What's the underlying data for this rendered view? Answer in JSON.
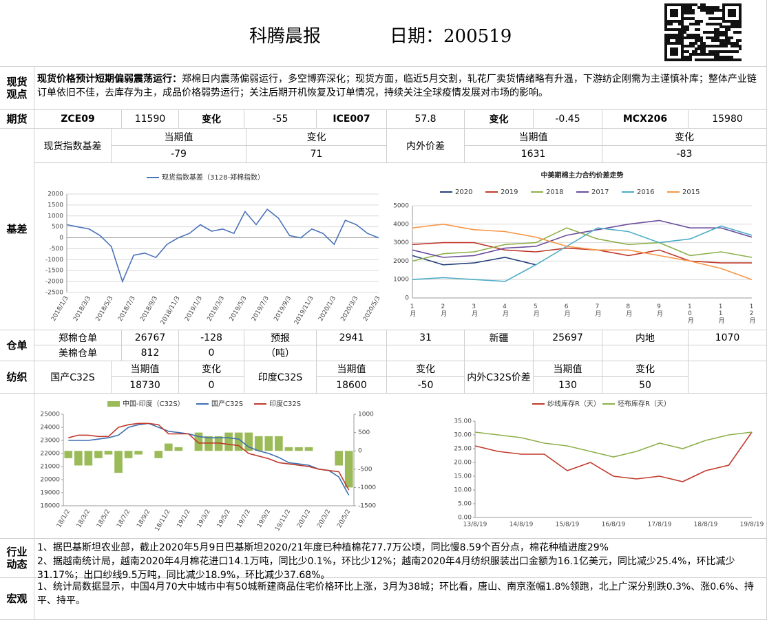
{
  "header": {
    "title": "科腾晨报",
    "date": "日期：200519"
  },
  "spot": {
    "label": "现货观点",
    "headline": "现货价格预计短期偏弱震荡运行：",
    "text": "郑棉日内震荡偏弱运行，多空博弈深化；现货方面，临近5月交割，轧花厂卖货情绪略有升温，下游纺企刚需为主谨慎补库；整体产业链订单依旧不佳，去库存为主，成品价格弱势运行；关注后期开机恢复及订单情况，持续关注全球疫情发展对市场的影响。"
  },
  "futures": {
    "label": "期货",
    "cells": [
      "ZCE09",
      "11590",
      "变化",
      "-55",
      "ICE007",
      "57.8",
      "变化",
      "-0.45",
      "MCX206",
      "15980"
    ]
  },
  "basis": {
    "label": "基差",
    "name": "现货指数基差",
    "current_label": "当期值",
    "current": "-79",
    "change_label": "变化",
    "change": "71",
    "spread_name": "内外价差",
    "spread_current_label": "当期值",
    "spread_current": "1631",
    "spread_change_label": "变化",
    "spread_change": "-83"
  },
  "warehouse": {
    "label": "仓单",
    "rows": [
      [
        "郑棉仓单",
        "26767",
        "-128",
        "预报",
        "2941",
        "31",
        "新疆",
        "25697",
        "内地",
        "1070"
      ],
      [
        "美棉仓单",
        "812",
        "0",
        "（吨）"
      ]
    ]
  },
  "textile": {
    "label": "纺织",
    "groups": [
      {
        "name": "国产C32S",
        "current_label": "当期值",
        "current": "18730",
        "change_label": "变化",
        "change": "0"
      },
      {
        "name": "印度C32S",
        "current_label": "当期值",
        "current": "18600",
        "change_label": "变化",
        "change": "-50"
      },
      {
        "name": "内外C32S价差",
        "current_label": "当期值",
        "current": "130",
        "change_label": "变化",
        "change": "50"
      }
    ]
  },
  "industry": {
    "label": "行业动态",
    "lines": [
      "1、据巴基斯坦农业部，截止2020年5月9日巴基斯坦2020/21年度已种植棉花77.7万公顷，同比慢8.59个百分点，棉花种植进度29%",
      "2、据越南统计局，越南2020年4月棉花进口14.1万吨，同比少0.1%，环比少12%；越南2020年4月纺织服装出口金额为16.1亿美元，同比减少25.4%，环比减少31.17%；出口纱线9.5万吨，同比减少18.9%，环比减少37.68%。"
    ]
  },
  "macro": {
    "label": "宏观",
    "lines": [
      "1、统计局数据显示，中国4月70大中城市中有50城新建商品住宅价格环比上涨，3月为38城；环比看，唐山、南京涨幅1.8%领跑，北上广深分别跌0.3%、涨0.6%、持平、持平。"
    ]
  },
  "chart_data": [
    {
      "type": "line",
      "grid": true,
      "categories": [
        "2018/1/3",
        null,
        "2018/3/3",
        null,
        "2018/5/3",
        null,
        "2018/7/3",
        null,
        "2018/9/3",
        null,
        "2018/11/3",
        null,
        "2019/1/3",
        null,
        "2019/3/3",
        null,
        "2019/5/3",
        null,
        "2019/7/3",
        null,
        "2019/9/3",
        null,
        "2019/11/3",
        null,
        "2020/1/3",
        null,
        "2020/3/3",
        null,
        "2020/5/3"
      ],
      "series": [
        {
          "name": "现货指数基差（3128-郑棉指数）",
          "color": "#4a72b8",
          "values": [
            600,
            500,
            400,
            100,
            -400,
            -2000,
            -800,
            -700,
            -900,
            -300,
            0,
            200,
            600,
            300,
            400,
            200,
            1200,
            600,
            1300,
            900,
            100,
            0,
            400,
            200,
            -300,
            800,
            600,
            200,
            0
          ]
        }
      ],
      "ylim": [
        -2500,
        2000
      ],
      "yticks": [
        -2500,
        -2000,
        -1500,
        -1000,
        -500,
        0,
        500,
        1000,
        1500,
        2000
      ]
    },
    {
      "type": "line",
      "grid": true,
      "title": "中美期棉主力合约价差走势",
      "categories": [
        "1月",
        "2月",
        "3月",
        "4月",
        "5月",
        "6月",
        "7月",
        "8月",
        "9月",
        "10月",
        "11月",
        "12月"
      ],
      "series": [
        {
          "name": "2020",
          "color": "#24407a",
          "values": [
            2300,
            1800,
            1900,
            2200,
            1800,
            null,
            null,
            null,
            null,
            null,
            null,
            null
          ]
        },
        {
          "name": "2019",
          "color": "#c0392b",
          "values": [
            2900,
            3000,
            3000,
            2600,
            2500,
            2700,
            2600,
            2300,
            2600,
            2000,
            1900,
            1900
          ]
        },
        {
          "name": "2018",
          "color": "#8db04a",
          "values": [
            2000,
            2400,
            2500,
            2900,
            3000,
            3800,
            3200,
            2900,
            3000,
            2300,
            2500,
            2200
          ]
        },
        {
          "name": "2017",
          "color": "#6a4c9c",
          "values": [
            2600,
            2200,
            2300,
            2700,
            2800,
            3400,
            3700,
            4000,
            4200,
            3800,
            3800,
            3300
          ]
        },
        {
          "name": "2016",
          "color": "#4bacc6",
          "values": [
            1000,
            1100,
            1000,
            900,
            1800,
            2800,
            3800,
            3600,
            3000,
            3200,
            3900,
            3400
          ]
        },
        {
          "name": "2015",
          "color": "#f79646",
          "values": [
            3800,
            4000,
            3700,
            3600,
            3300,
            2800,
            2600,
            2600,
            2300,
            2000,
            1600,
            1000
          ]
        }
      ],
      "ylim": [
        0,
        5000
      ],
      "yticks": [
        0,
        1000,
        2000,
        3000,
        4000,
        5000
      ]
    },
    {
      "type": "combo",
      "grid": false,
      "categories": [
        "18/1/2",
        null,
        "18/3/2",
        null,
        "18/5/2",
        null,
        "18/7/2",
        null,
        "18/9/2",
        null,
        "18/11/2",
        null,
        "19/1/2",
        null,
        "19/3/2",
        null,
        "19/5/2",
        null,
        "19/7/2",
        null,
        "19/9/2",
        null,
        "19/11/2",
        null,
        "20/1/2",
        null,
        "20/3/2",
        null,
        "20/5/2"
      ],
      "series": [
        {
          "name": "中国-印度（C32S）",
          "color": "#9bbb59",
          "type": "bar",
          "axis": "y2",
          "values": [
            -200,
            -400,
            -400,
            -200,
            -100,
            -600,
            -200,
            -100,
            0,
            -200,
            200,
            100,
            0,
            500,
            400,
            400,
            500,
            500,
            500,
            400,
            400,
            400,
            100,
            100,
            100,
            0,
            0,
            -400,
            -1000
          ]
        },
        {
          "name": "国产C32S",
          "color": "#3e6fb0",
          "type": "line",
          "values": [
            23000,
            23000,
            23000,
            23100,
            23200,
            23400,
            24000,
            24200,
            24300,
            24000,
            23700,
            23600,
            23500,
            23300,
            23200,
            23200,
            23200,
            23100,
            22500,
            22200,
            22000,
            21700,
            21300,
            21200,
            21100,
            20800,
            20700,
            20200,
            18800
          ]
        },
        {
          "name": "印度C32S",
          "color": "#c0392b",
          "type": "line",
          "values": [
            23200,
            23400,
            23400,
            23300,
            23300,
            24000,
            24200,
            24300,
            24300,
            24200,
            23500,
            23500,
            23500,
            22800,
            22800,
            22800,
            22700,
            22600,
            22000,
            21800,
            21600,
            21300,
            21200,
            21100,
            21000,
            20800,
            20700,
            20600,
            19200
          ]
        }
      ],
      "ylim": [
        18000,
        25000
      ],
      "yticks": [
        18000,
        19000,
        20000,
        21000,
        22000,
        23000,
        24000,
        25000
      ],
      "y2lim": [
        -1500,
        1000
      ],
      "y2ticks": [
        -1500,
        -1000,
        -500,
        0,
        500,
        1000
      ]
    },
    {
      "type": "line",
      "grid": false,
      "categories": [
        "13/8/19",
        null,
        "14/8/19",
        null,
        "15/8/19",
        null,
        "16/8/19",
        null,
        "17/8/19",
        null,
        "18/8/19",
        null,
        "19/8/19"
      ],
      "series": [
        {
          "name": "纱线库存R（天）",
          "color": "#c0392b",
          "values": [
            26,
            24,
            23,
            23,
            17,
            20,
            15,
            14,
            15,
            13,
            17,
            19,
            31
          ]
        },
        {
          "name": "坯布库存R（天）",
          "color": "#8db04a",
          "values": [
            31,
            30,
            29,
            27,
            26,
            24,
            22,
            24,
            27,
            25,
            28,
            30,
            31
          ]
        }
      ],
      "ylim": [
        0,
        35
      ],
      "yticks": [
        {
          "value": 0,
          "label": "0.00"
        },
        {
          "value": 5,
          "label": "5.00"
        },
        {
          "value": 10,
          "label": "10.00"
        },
        {
          "value": 15,
          "label": "15.00"
        },
        {
          "value": 20,
          "label": "20.00"
        },
        {
          "value": 25,
          "label": "25.00"
        },
        {
          "value": 30,
          "label": "30.00"
        },
        {
          "value": 35,
          "label": "35.00"
        }
      ]
    }
  ]
}
